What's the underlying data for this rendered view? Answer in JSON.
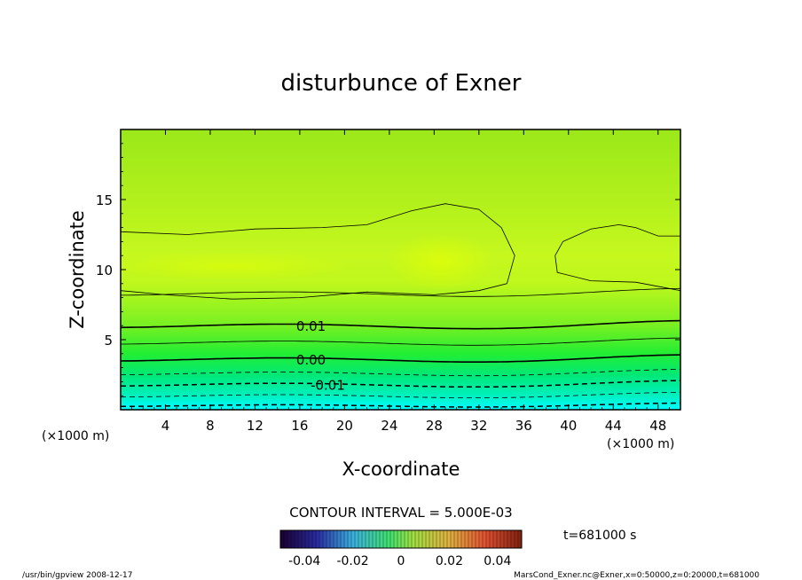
{
  "chart_data": {
    "type": "heatmap",
    "title": "disturbunce of Exner",
    "xlabel": "X-coordinate",
    "ylabel": "Z-coordinate",
    "x_unit_label": "(×1000 m)",
    "y_unit_label": "(×1000 m)",
    "xlim": [
      0,
      50
    ],
    "ylim": [
      0,
      20
    ],
    "x_ticks": [
      4,
      8,
      12,
      16,
      20,
      24,
      28,
      32,
      36,
      40,
      44,
      48
    ],
    "y_ticks": [
      5,
      10,
      15
    ],
    "contour_interval_label": "CONTOUR INTERVAL = 5.000E-03",
    "contour_labels": [
      {
        "text": "0.01",
        "x": 17,
        "z": 6.0
      },
      {
        "text": "0.00",
        "x": 17,
        "z": 3.6
      },
      {
        "text": "-0.01",
        "x": 18.5,
        "z": 1.8
      }
    ],
    "colorbar": {
      "range": [
        -0.05,
        0.05
      ],
      "ticks": [
        "-0.04",
        "-0.02",
        "0",
        "0.02",
        "0.04"
      ],
      "tick_values": [
        -0.04,
        -0.02,
        0,
        0.02,
        0.04
      ]
    },
    "time_label": "t=681000 s",
    "colors": {
      "low": "#00ffff",
      "mid": "#00ee66",
      "high": "#e8ff00"
    }
  },
  "footer": {
    "left": "/usr/bin/gpview   2008-12-17",
    "right": "MarsCond_Exner.nc@Exner,x=0:50000,z=0:20000,t=681000"
  }
}
